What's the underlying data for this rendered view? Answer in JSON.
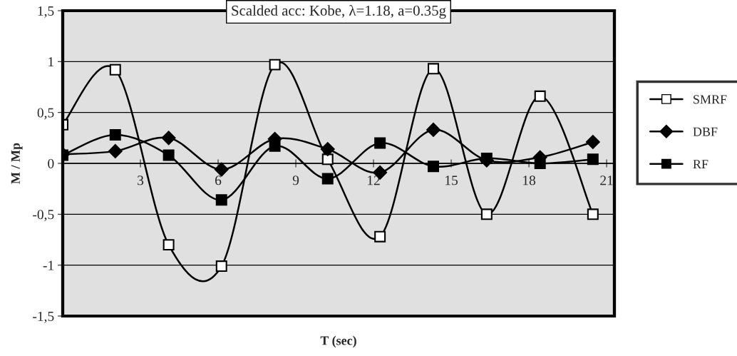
{
  "chart_data": {
    "type": "line",
    "title": "Scalded acc: Kobe, λ=1.18, a=0.35g",
    "xlabel": "T (sec)",
    "ylabel": "M / Mp",
    "x": [
      0,
      2.03,
      4.09,
      6.13,
      8.19,
      10.23,
      12.25,
      14.31,
      16.37,
      18.43,
      20.47
    ],
    "series": [
      {
        "name": "SMRF",
        "color": "#000000",
        "colors": [
          "#ffffff",
          "#ffffff",
          "#ffffff",
          "#ffffff",
          "#ffffff",
          "#ffffff",
          "#ffffff",
          "#ffffff",
          "#ffffff",
          "#ffffff",
          "#ffffff"
        ],
        "marker": "square",
        "values": [
          0.38,
          0.92,
          -0.8,
          -1.01,
          0.97,
          0.04,
          -0.72,
          0.93,
          -0.5,
          0.66,
          -0.5
        ]
      },
      {
        "name": "DBF",
        "color": "#000000",
        "marker": "diamond",
        "values": [
          0.09,
          0.12,
          0.25,
          -0.06,
          0.24,
          0.14,
          -0.09,
          0.33,
          0.03,
          0.06,
          0.21
        ]
      },
      {
        "name": "RF",
        "color": "#000000",
        "marker": "square",
        "values": [
          0.08,
          0.28,
          0.08,
          -0.36,
          0.17,
          -0.15,
          0.2,
          -0.03,
          0.05,
          0.0,
          0.04
        ]
      }
    ],
    "xlim": [
      0,
      21.3
    ],
    "xticks": [
      3,
      6,
      9,
      12,
      15,
      18,
      21
    ],
    "ylim": [
      -1.5,
      1.5
    ],
    "yticks": [
      {
        "value": -1.5,
        "label": "-1,5"
      },
      {
        "value": -1,
        "label": "-1"
      },
      {
        "value": -0.5,
        "label": "-0,5"
      },
      {
        "value": 0,
        "label": "0"
      },
      {
        "value": 0.5,
        "label": "0,5"
      },
      {
        "value": 1,
        "label": "1"
      },
      {
        "value": 1.5,
        "label": "1,5"
      }
    ],
    "grid": "y",
    "legend": "right",
    "line_style": "solid"
  }
}
